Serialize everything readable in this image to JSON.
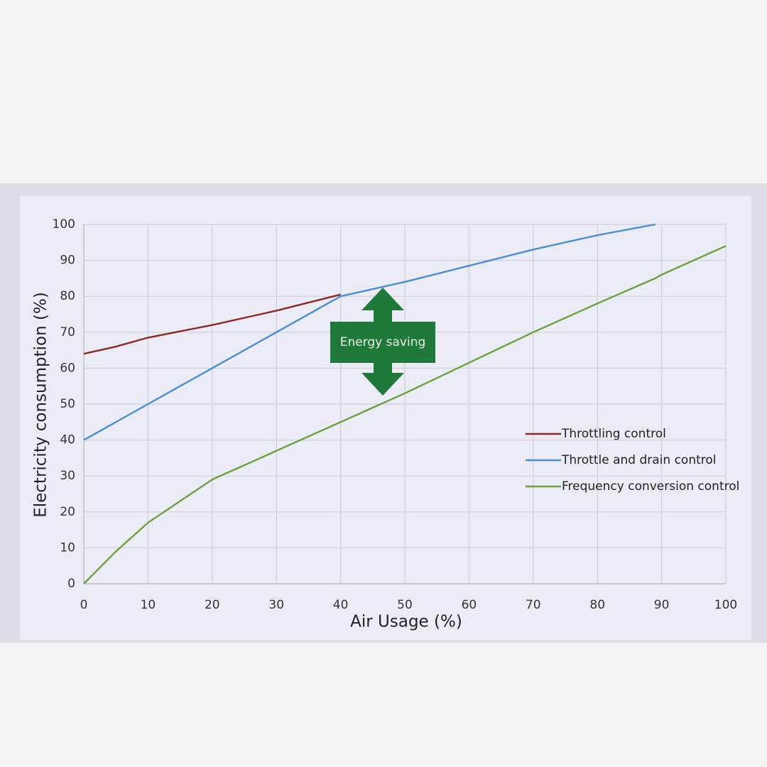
{
  "chart_data": {
    "type": "line",
    "x_label": "Air Usage  (%)",
    "y_label": "Electricity consumption  (%)",
    "x": [
      0,
      5,
      10,
      20,
      30,
      40,
      50,
      60,
      70,
      80,
      89,
      90,
      100
    ],
    "series": [
      {
        "name": "Throttling control",
        "color": "#8b2a22",
        "values": [
          64,
          66,
          68.5,
          72,
          76,
          80.5,
          null,
          null,
          null,
          null,
          null,
          null,
          null
        ]
      },
      {
        "name": "Throttle and drain control",
        "color": "#4a8fd6",
        "values": [
          40,
          45,
          50,
          60,
          70,
          80,
          84,
          88.5,
          93,
          97,
          100,
          null,
          null
        ]
      },
      {
        "name": "Frequency conversion control",
        "color": "#6aa23c",
        "values": [
          0,
          9,
          17,
          29,
          37,
          45,
          53,
          61.5,
          70,
          78,
          85,
          86,
          94
        ]
      }
    ],
    "xlim": [
      0,
      100
    ],
    "xticks": [
      0,
      10,
      20,
      30,
      40,
      50,
      60,
      70,
      80,
      90,
      100
    ],
    "ylim": [
      0,
      100
    ],
    "yticks": [
      0,
      10,
      20,
      30,
      40,
      50,
      60,
      70,
      80,
      90,
      100
    ],
    "grid": true,
    "legend": "right",
    "annotation": {
      "text": "Energy saving",
      "color": "#1f7a3a"
    }
  }
}
